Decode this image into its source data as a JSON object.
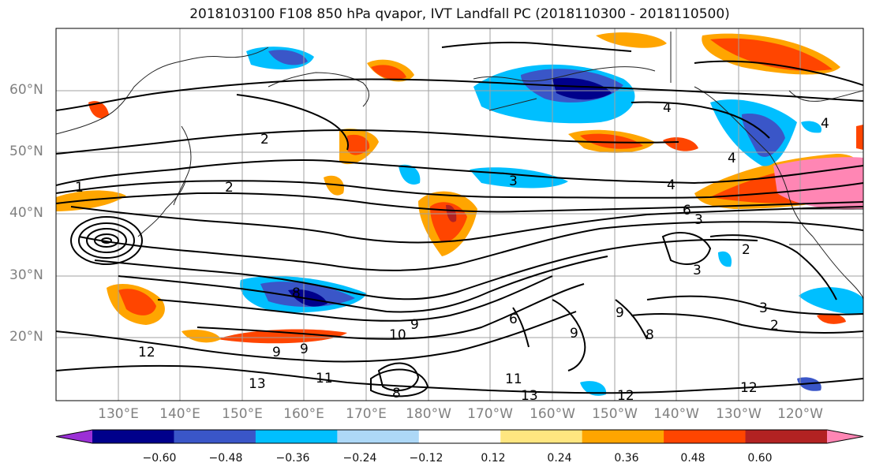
{
  "title": "2018103100 F108 850 hPa qvapor, IVT Landfall PC (2018110300 - 2018110500)",
  "lat_labels": [
    "60°N",
    "50°N",
    "40°N",
    "30°N",
    "20°N"
  ],
  "lon_labels": [
    "130°E",
    "140°E",
    "150°E",
    "160°E",
    "170°E",
    "180°W",
    "170°W",
    "160°W",
    "150°W",
    "140°W",
    "130°W",
    "120°W"
  ],
  "colorbar": {
    "ticks": [
      "−0.60",
      "−0.48",
      "−0.36",
      "−0.24",
      "−0.12",
      "0.12",
      "0.24",
      "0.36",
      "0.48",
      "0.60"
    ],
    "colors": [
      "#9b30d6",
      "#00008b",
      "#3a56c8",
      "#00bfff",
      "#add8f7",
      "#ffffff",
      "#ffe680",
      "#ffa500",
      "#ff4500",
      "#b22222",
      "#ff86b4"
    ]
  },
  "contour_labels": [
    "1",
    "2",
    "2",
    "3",
    "4",
    "4",
    "4",
    "4",
    "2",
    "3",
    "2",
    "3",
    "3",
    "6",
    "8",
    "9",
    "9",
    "9",
    "8",
    "12",
    "9",
    "6",
    "11",
    "13",
    "13",
    "11",
    "12",
    "12",
    "10",
    "9",
    "8"
  ],
  "shading_colors": {
    "pos_light": "#ffe680",
    "pos_mid": "#ffa500",
    "pos_high": "#ff4500",
    "pos_max": "#b22222",
    "pos_pink": "#ff86b4",
    "neg_light": "#00bfff",
    "neg_mid": "#3a56c8",
    "neg_high": "#00008b"
  }
}
